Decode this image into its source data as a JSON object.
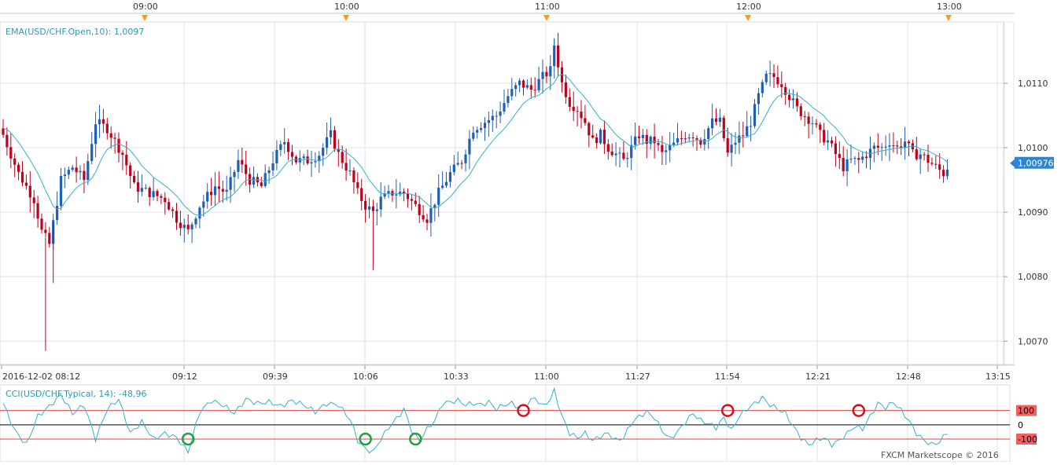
{
  "app": {
    "watermark": "FXCM Marketscope © 2016"
  },
  "colors": {
    "bull": "#1f5fb5",
    "bear": "#c0001c",
    "ema": "#35b0d0",
    "cci": "#35b0d0",
    "grid": "#e2e2e2",
    "band": "#e04040",
    "price_tag_bg": "#2e86d0",
    "signal_buy": "#20a040",
    "signal_sell": "#d01020"
  },
  "top_time_axis": {
    "labels": [
      "09:00",
      "10:00",
      "11:00",
      "12:00",
      "13:00"
    ]
  },
  "bottom_time_axis": {
    "labels": [
      "2016-12-02 08:12",
      "09:12",
      "09:39",
      "10:06",
      "10:33",
      "11:00",
      "11:27",
      "11:54",
      "12:21",
      "12:48",
      "13:15"
    ]
  },
  "chart_data": [
    {
      "type": "candlestick",
      "title": "",
      "indicator_label": "EMA(USD/CHF.Open,10): 1,0097",
      "y_tick_labels": [
        "1,0110",
        "1,0100",
        "1,0090",
        "1,0080",
        "1,0070"
      ],
      "y_ticks": [
        1.011,
        1.01,
        1.009,
        1.008,
        1.007
      ],
      "ylim": [
        1.00665,
        1.01195
      ],
      "current_price": 1.00976,
      "current_price_label": "1,00976",
      "grid": true,
      "series": [
        {
          "name": "USD/CHF",
          "kind": "candles"
        },
        {
          "name": "EMA(USD/CHF.Open,10)",
          "kind": "line"
        }
      ],
      "anchors": [
        [
          0,
          1.0102
        ],
        [
          4,
          1.0096
        ],
        [
          8,
          1.0092
        ],
        [
          10,
          1.0087
        ],
        [
          12,
          1.0085
        ],
        [
          15,
          1.0095
        ],
        [
          18,
          1.0097
        ],
        [
          21,
          1.0095
        ],
        [
          24,
          1.0104
        ],
        [
          27,
          1.0103
        ],
        [
          31,
          1.0099
        ],
        [
          34,
          1.0094
        ],
        [
          38,
          1.0093
        ],
        [
          42,
          1.0092
        ],
        [
          45,
          1.0089
        ],
        [
          48,
          1.0087
        ],
        [
          51,
          1.0091
        ],
        [
          55,
          1.0094
        ],
        [
          58,
          1.0093
        ],
        [
          61,
          1.0098
        ],
        [
          64,
          1.0095
        ],
        [
          67,
          1.0094
        ],
        [
          70,
          1.0098
        ],
        [
          73,
          1.0101
        ],
        [
          76,
          1.0098
        ],
        [
          79,
          1.0098
        ],
        [
          82,
          1.0099
        ],
        [
          85,
          1.0102
        ],
        [
          87,
          1.0099
        ],
        [
          90,
          1.0096
        ],
        [
          92,
          1.0093
        ],
        [
          94,
          1.0091
        ],
        [
          96,
          1.009
        ],
        [
          98,
          1.0092
        ],
        [
          101,
          1.0093
        ],
        [
          104,
          1.0093
        ],
        [
          107,
          1.0091
        ],
        [
          110,
          1.0089
        ],
        [
          113,
          1.0093
        ],
        [
          116,
          1.0096
        ],
        [
          119,
          1.0098
        ],
        [
          122,
          1.0103
        ],
        [
          125,
          1.0104
        ],
        [
          128,
          1.0105
        ],
        [
          131,
          1.0108
        ],
        [
          134,
          1.011
        ],
        [
          137,
          1.0109
        ],
        [
          140,
          1.0111
        ],
        [
          142,
          1.0112
        ],
        [
          143,
          1.0116
        ],
        [
          145,
          1.011
        ],
        [
          147,
          1.0107
        ],
        [
          149,
          1.0106
        ],
        [
          151,
          1.0104
        ],
        [
          153,
          1.0101
        ],
        [
          155,
          1.0102
        ],
        [
          157,
          1.01
        ],
        [
          159,
          1.0099
        ],
        [
          161,
          1.0098
        ],
        [
          163,
          1.01
        ],
        [
          165,
          1.0102
        ],
        [
          167,
          1.0101
        ],
        [
          169,
          1.0101
        ],
        [
          171,
          1.0099
        ],
        [
          173,
          1.01
        ],
        [
          175,
          1.0101
        ],
        [
          177,
          1.0102
        ],
        [
          179,
          1.0102
        ],
        [
          181,
          1.0101
        ],
        [
          184,
          1.0104
        ],
        [
          186,
          1.0104
        ],
        [
          188,
          1.0099
        ],
        [
          190,
          1.0101
        ],
        [
          192,
          1.0102
        ],
        [
          194,
          1.0104
        ],
        [
          196,
          1.0108
        ],
        [
          198,
          1.0111
        ],
        [
          200,
          1.0111
        ],
        [
          202,
          1.011
        ],
        [
          204,
          1.0108
        ],
        [
          206,
          1.0106
        ],
        [
          208,
          1.0105
        ],
        [
          210,
          1.0104
        ],
        [
          212,
          1.0102
        ],
        [
          214,
          1.0101
        ],
        [
          216,
          1.0099
        ],
        [
          218,
          1.0097
        ],
        [
          220,
          1.0098
        ],
        [
          222,
          1.0098
        ],
        [
          224,
          1.0099
        ],
        [
          226,
          1.01
        ],
        [
          228,
          1.01
        ],
        [
          230,
          1.0101
        ],
        [
          232,
          1.01
        ],
        [
          234,
          1.0101
        ],
        [
          236,
          1.0099
        ],
        [
          238,
          1.0099
        ],
        [
          240,
          1.0098
        ],
        [
          242,
          1.0097
        ],
        [
          244,
          1.0096
        ],
        [
          245,
          1.0097
        ]
      ]
    },
    {
      "type": "line",
      "title": "",
      "indicator_label": "CCI(USD/CHF.Typical, 14): -48,96",
      "y_tick_labels": [
        "100",
        "0",
        "-100"
      ],
      "y_ticks": [
        100,
        0,
        -100
      ],
      "ylim": [
        -260,
        280
      ],
      "levels": [
        100,
        0,
        -100
      ],
      "grid": true,
      "series": [
        {
          "name": "CCI(USD/CHF.Typical, 14)"
        }
      ],
      "anchors": [
        [
          0,
          150
        ],
        [
          3,
          -40
        ],
        [
          6,
          -140
        ],
        [
          9,
          60
        ],
        [
          12,
          130
        ],
        [
          15,
          210
        ],
        [
          18,
          80
        ],
        [
          21,
          140
        ],
        [
          24,
          -100
        ],
        [
          27,
          110
        ],
        [
          30,
          180
        ],
        [
          33,
          -60
        ],
        [
          36,
          20
        ],
        [
          39,
          -100
        ],
        [
          42,
          -60
        ],
        [
          45,
          -90
        ],
        [
          48,
          -190
        ],
        [
          51,
          90
        ],
        [
          54,
          170
        ],
        [
          57,
          140
        ],
        [
          60,
          80
        ],
        [
          63,
          180
        ],
        [
          66,
          150
        ],
        [
          69,
          160
        ],
        [
          72,
          130
        ],
        [
          75,
          170
        ],
        [
          78,
          140
        ],
        [
          81,
          90
        ],
        [
          84,
          150
        ],
        [
          87,
          140
        ],
        [
          90,
          40
        ],
        [
          92,
          -110
        ],
        [
          94,
          -170
        ],
        [
          96,
          -190
        ],
        [
          98,
          -100
        ],
        [
          100,
          -20
        ],
        [
          102,
          40
        ],
        [
          104,
          110
        ],
        [
          106,
          -40
        ],
        [
          108,
          -110
        ],
        [
          110,
          -30
        ],
        [
          112,
          30
        ],
        [
          114,
          150
        ],
        [
          116,
          160
        ],
        [
          118,
          170
        ],
        [
          120,
          140
        ],
        [
          122,
          150
        ],
        [
          124,
          140
        ],
        [
          126,
          160
        ],
        [
          128,
          110
        ],
        [
          130,
          140
        ],
        [
          132,
          150
        ],
        [
          134,
          120
        ],
        [
          136,
          150
        ],
        [
          138,
          190
        ],
        [
          140,
          130
        ],
        [
          142,
          180
        ],
        [
          143,
          240
        ],
        [
          145,
          60
        ],
        [
          147,
          -60
        ],
        [
          149,
          -90
        ],
        [
          151,
          -60
        ],
        [
          153,
          -110
        ],
        [
          155,
          -80
        ],
        [
          157,
          -60
        ],
        [
          159,
          -110
        ],
        [
          161,
          -90
        ],
        [
          163,
          10
        ],
        [
          165,
          60
        ],
        [
          167,
          90
        ],
        [
          169,
          50
        ],
        [
          171,
          -40
        ],
        [
          173,
          -100
        ],
        [
          175,
          -50
        ],
        [
          177,
          20
        ],
        [
          179,
          80
        ],
        [
          181,
          30
        ],
        [
          183,
          10
        ],
        [
          185,
          -20
        ],
        [
          187,
          50
        ],
        [
          189,
          -40
        ],
        [
          191,
          60
        ],
        [
          193,
          110
        ],
        [
          195,
          150
        ],
        [
          197,
          190
        ],
        [
          199,
          140
        ],
        [
          201,
          110
        ],
        [
          203,
          80
        ],
        [
          205,
          -10
        ],
        [
          207,
          -90
        ],
        [
          209,
          -140
        ],
        [
          211,
          -110
        ],
        [
          213,
          -90
        ],
        [
          215,
          -140
        ],
        [
          217,
          -110
        ],
        [
          219,
          -60
        ],
        [
          221,
          -10
        ],
        [
          223,
          -30
        ],
        [
          225,
          60
        ],
        [
          227,
          150
        ],
        [
          229,
          120
        ],
        [
          231,
          160
        ],
        [
          233,
          100
        ],
        [
          235,
          30
        ],
        [
          237,
          -60
        ],
        [
          239,
          -110
        ],
        [
          241,
          -140
        ],
        [
          243,
          -120
        ],
        [
          245,
          -50
        ]
      ],
      "signals": [
        {
          "type": "buy",
          "bar": 48
        },
        {
          "type": "buy",
          "bar": 94
        },
        {
          "type": "buy",
          "bar": 107
        },
        {
          "type": "sell",
          "bar": 135
        },
        {
          "type": "sell",
          "bar": 188
        },
        {
          "type": "sell",
          "bar": 222
        }
      ]
    }
  ]
}
